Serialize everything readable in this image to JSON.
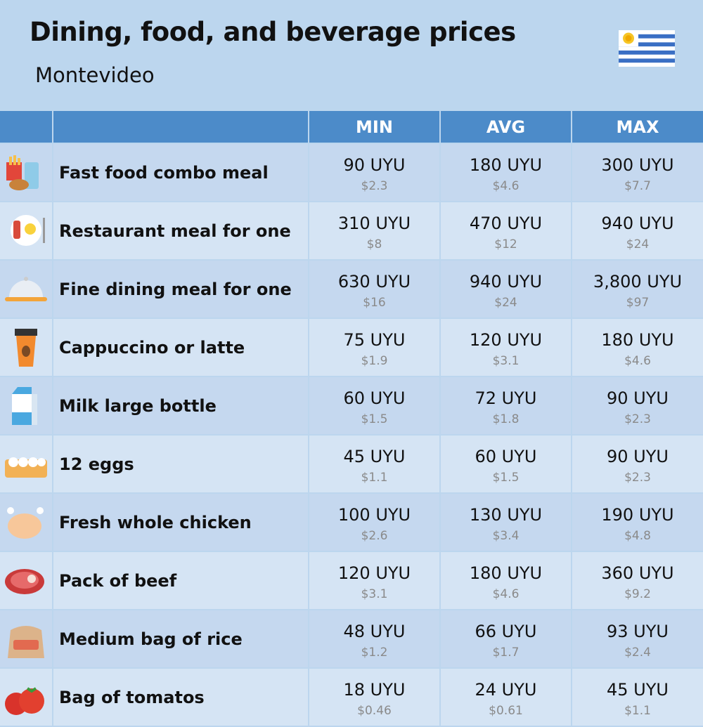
{
  "header": {
    "title": "Dining, food, and beverage prices",
    "subtitle": "Montevideo"
  },
  "table": {
    "columns": [
      "MIN",
      "AVG",
      "MAX"
    ],
    "rows": [
      {
        "item": "Fast food combo meal",
        "prices": [
          {
            "local": "90 UYU",
            "usd": "$2.3"
          },
          {
            "local": "180 UYU",
            "usd": "$4.6"
          },
          {
            "local": "300 UYU",
            "usd": "$7.7"
          }
        ]
      },
      {
        "item": "Restaurant meal for one",
        "prices": [
          {
            "local": "310 UYU",
            "usd": "$8"
          },
          {
            "local": "470 UYU",
            "usd": "$12"
          },
          {
            "local": "940 UYU",
            "usd": "$24"
          }
        ]
      },
      {
        "item": "Fine dining meal for one",
        "prices": [
          {
            "local": "630 UYU",
            "usd": "$16"
          },
          {
            "local": "940 UYU",
            "usd": "$24"
          },
          {
            "local": "3,800 UYU",
            "usd": "$97"
          }
        ]
      },
      {
        "item": "Cappuccino or latte",
        "prices": [
          {
            "local": "75 UYU",
            "usd": "$1.9"
          },
          {
            "local": "120 UYU",
            "usd": "$3.1"
          },
          {
            "local": "180 UYU",
            "usd": "$4.6"
          }
        ]
      },
      {
        "item": "Milk large bottle",
        "prices": [
          {
            "local": "60 UYU",
            "usd": "$1.5"
          },
          {
            "local": "72 UYU",
            "usd": "$1.8"
          },
          {
            "local": "90 UYU",
            "usd": "$2.3"
          }
        ]
      },
      {
        "item": "12 eggs",
        "prices": [
          {
            "local": "45 UYU",
            "usd": "$1.1"
          },
          {
            "local": "60 UYU",
            "usd": "$1.5"
          },
          {
            "local": "90 UYU",
            "usd": "$2.3"
          }
        ]
      },
      {
        "item": "Fresh whole chicken",
        "prices": [
          {
            "local": "100 UYU",
            "usd": "$2.6"
          },
          {
            "local": "130 UYU",
            "usd": "$3.4"
          },
          {
            "local": "190 UYU",
            "usd": "$4.8"
          }
        ]
      },
      {
        "item": "Pack of beef",
        "prices": [
          {
            "local": "120 UYU",
            "usd": "$3.1"
          },
          {
            "local": "180 UYU",
            "usd": "$4.6"
          },
          {
            "local": "360 UYU",
            "usd": "$9.2"
          }
        ]
      },
      {
        "item": "Medium bag of rice",
        "prices": [
          {
            "local": "48 UYU",
            "usd": "$1.2"
          },
          {
            "local": "66 UYU",
            "usd": "$1.7"
          },
          {
            "local": "93 UYU",
            "usd": "$2.4"
          }
        ]
      },
      {
        "item": "Bag of tomatos",
        "prices": [
          {
            "local": "18 UYU",
            "usd": "$0.46"
          },
          {
            "local": "24 UYU",
            "usd": "$0.61"
          },
          {
            "local": "45 UYU",
            "usd": "$1.1"
          }
        ]
      }
    ]
  }
}
